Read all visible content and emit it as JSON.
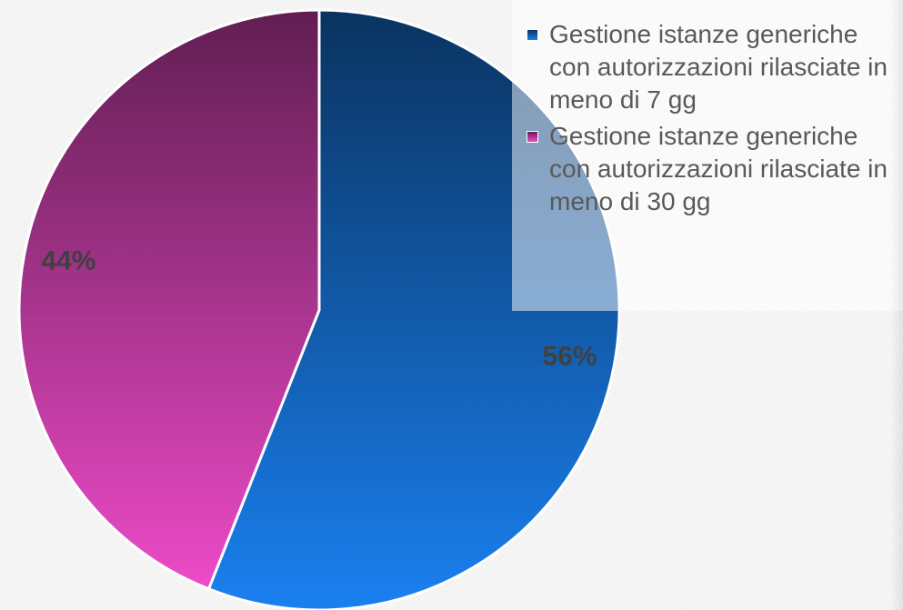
{
  "chart_data": {
    "type": "pie",
    "categories": [
      "Gestione istanze generiche con autorizzazioni rilasciate in meno di 7 gg",
      "Gestione istanze generiche con autorizzazioni rilasciate in meno di 30 gg"
    ],
    "values": [
      56,
      44
    ],
    "value_labels": [
      "56%",
      "44%"
    ],
    "colors": [
      "#1a80f0",
      "#f24ccc"
    ],
    "legend": "top-right"
  }
}
